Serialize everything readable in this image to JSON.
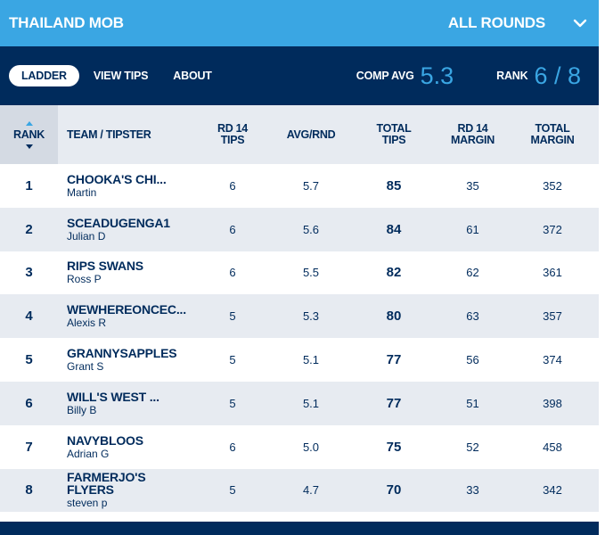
{
  "header": {
    "title": "THAILAND MOB",
    "rounds_label": "ALL ROUNDS"
  },
  "tabs": [
    {
      "label": "LADDER",
      "active": true
    },
    {
      "label": "VIEW TIPS",
      "active": false
    },
    {
      "label": "ABOUT",
      "active": false
    }
  ],
  "stats": {
    "comp_avg_label": "COMP AVG",
    "comp_avg_value": "5.3",
    "rank_label": "RANK",
    "rank_value": "6 / 8"
  },
  "columns": {
    "rank": "RANK",
    "team": "TEAM / TIPSTER",
    "rd_tips": "RD 14 TIPS",
    "avg": "AVG/RND",
    "total_tips": "TOTAL TIPS",
    "rd_margin": "RD 14 MARGIN",
    "total_margin": "TOTAL MARGIN"
  },
  "rows": [
    {
      "rank": "1",
      "team": "CHOOKA'S CHI...",
      "tipster": "Martin",
      "rd_tips": "6",
      "avg": "5.7",
      "total_tips": "85",
      "rd_margin": "35",
      "total_margin": "352"
    },
    {
      "rank": "2",
      "team": "SCEADUGENGA1",
      "tipster": "Julian D",
      "rd_tips": "6",
      "avg": "5.6",
      "total_tips": "84",
      "rd_margin": "61",
      "total_margin": "372"
    },
    {
      "rank": "3",
      "team": "RIPS SWANS",
      "tipster": "Ross P",
      "rd_tips": "6",
      "avg": "5.5",
      "total_tips": "82",
      "rd_margin": "62",
      "total_margin": "361"
    },
    {
      "rank": "4",
      "team": "WEWHEREONCEC...",
      "tipster": "Alexis R",
      "rd_tips": "5",
      "avg": "5.3",
      "total_tips": "80",
      "rd_margin": "63",
      "total_margin": "357"
    },
    {
      "rank": "5",
      "team": "GRANNYSAPPLES",
      "tipster": "Grant S",
      "rd_tips": "5",
      "avg": "5.1",
      "total_tips": "77",
      "rd_margin": "56",
      "total_margin": "374"
    },
    {
      "rank": "6",
      "team": "WILL'S WEST ...",
      "tipster": "Billy B",
      "rd_tips": "5",
      "avg": "5.1",
      "total_tips": "77",
      "rd_margin": "51",
      "total_margin": "398"
    },
    {
      "rank": "7",
      "team": "NAVYBLOOS",
      "tipster": "Adrian G",
      "rd_tips": "6",
      "avg": "5.0",
      "total_tips": "75",
      "rd_margin": "52",
      "total_margin": "458"
    },
    {
      "rank": "8",
      "team": "FARMERJO'S FLYERS",
      "tipster": "steven p",
      "rd_tips": "5",
      "avg": "4.7",
      "total_tips": "70",
      "rd_margin": "33",
      "total_margin": "342"
    }
  ],
  "colors": {
    "header_bg": "#3aa6e3",
    "subbar_bg": "#002b5c",
    "text_navy": "#002b5c",
    "stripe": "#e7ebf1"
  }
}
